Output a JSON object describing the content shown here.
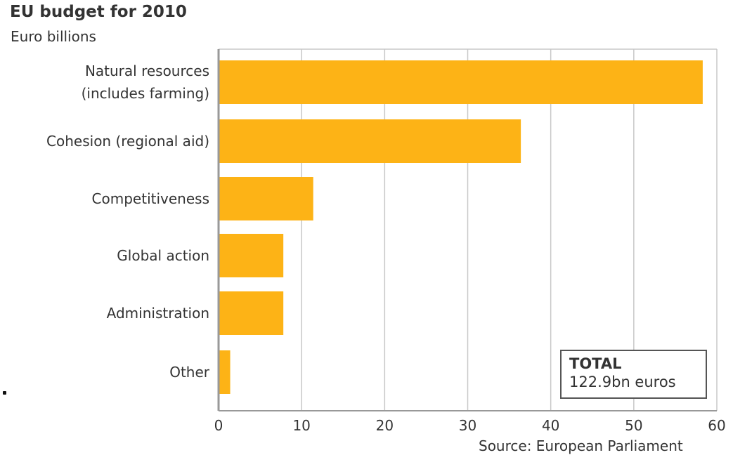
{
  "title": "EU budget for 2010",
  "subtitle": "Euro billions",
  "source": "Source: European Parliament",
  "total_box": {
    "label": "TOTAL",
    "value": "122.9bn euros"
  },
  "colors": {
    "bar": "#fdb316",
    "grid": "#c8c8c8",
    "axis": "#999999",
    "text": "#333333"
  },
  "chart_data": {
    "type": "bar",
    "orientation": "horizontal",
    "title": "EU budget for 2010",
    "subtitle": "Euro billions",
    "xlabel": "",
    "ylabel": "",
    "xlim": [
      0,
      60
    ],
    "ticks": [
      0,
      10,
      20,
      30,
      40,
      50,
      60
    ],
    "grid": true,
    "categories": [
      [
        "Natural resources",
        "(includes farming)"
      ],
      [
        "Cohesion (regional aid)"
      ],
      [
        "Competitiveness"
      ],
      [
        "Global action"
      ],
      [
        "Administration"
      ],
      [
        "Other"
      ]
    ],
    "values": [
      58.3,
      36.4,
      11.4,
      7.8,
      7.8,
      1.4
    ]
  }
}
